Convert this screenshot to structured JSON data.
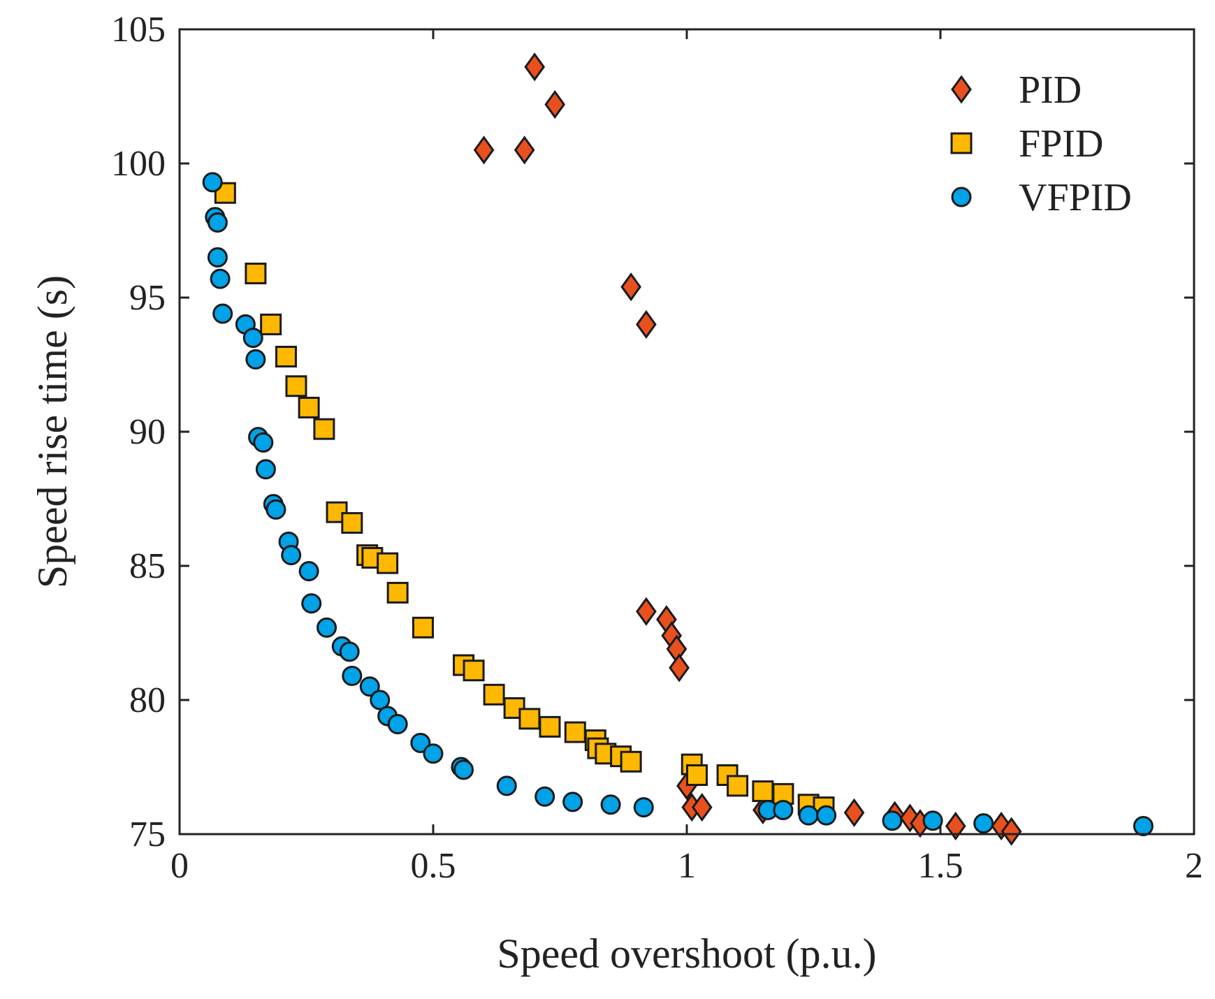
{
  "chart_data": {
    "type": "scatter",
    "title": "",
    "xlabel": "Speed overshoot (p.u.)",
    "ylabel": "Speed rise time (s)",
    "xlim": [
      0,
      2
    ],
    "ylim": [
      75,
      105
    ],
    "xticks": [
      0,
      0.5,
      1,
      1.5,
      2
    ],
    "xtick_labels": [
      "0",
      "0.5",
      "1",
      "1.5",
      "2"
    ],
    "yticks": [
      75,
      80,
      85,
      90,
      95,
      100,
      105
    ],
    "ytick_labels": [
      "75",
      "80",
      "85",
      "90",
      "95",
      "100",
      "105"
    ],
    "grid": false,
    "legend": "top-right",
    "series": [
      {
        "name": "PID",
        "marker": "diamond",
        "color": "#E8501E",
        "points": [
          [
            0.6,
            100.5
          ],
          [
            0.68,
            100.5
          ],
          [
            0.7,
            103.6
          ],
          [
            0.74,
            102.2
          ],
          [
            0.89,
            95.4
          ],
          [
            0.92,
            94.0
          ],
          [
            0.92,
            83.3
          ],
          [
            0.96,
            83.0
          ],
          [
            0.97,
            82.4
          ],
          [
            0.98,
            81.9
          ],
          [
            0.985,
            81.2
          ],
          [
            1.0,
            76.8
          ],
          [
            1.01,
            76.0
          ],
          [
            1.03,
            76.0
          ],
          [
            1.15,
            75.9
          ],
          [
            1.33,
            75.8
          ],
          [
            1.41,
            75.7
          ],
          [
            1.44,
            75.6
          ],
          [
            1.46,
            75.4
          ],
          [
            1.53,
            75.3
          ],
          [
            1.62,
            75.3
          ],
          [
            1.64,
            75.1
          ]
        ]
      },
      {
        "name": "FPID",
        "marker": "square",
        "color": "#FFB800",
        "points": [
          [
            0.09,
            98.9
          ],
          [
            0.15,
            95.9
          ],
          [
            0.18,
            94.0
          ],
          [
            0.21,
            92.8
          ],
          [
            0.23,
            91.7
          ],
          [
            0.255,
            90.9
          ],
          [
            0.285,
            90.1
          ],
          [
            0.31,
            87.0
          ],
          [
            0.34,
            86.6
          ],
          [
            0.37,
            85.4
          ],
          [
            0.38,
            85.3
          ],
          [
            0.41,
            85.1
          ],
          [
            0.43,
            84.0
          ],
          [
            0.48,
            82.7
          ],
          [
            0.56,
            81.3
          ],
          [
            0.58,
            81.1
          ],
          [
            0.62,
            80.2
          ],
          [
            0.66,
            79.7
          ],
          [
            0.69,
            79.3
          ],
          [
            0.73,
            79.0
          ],
          [
            0.78,
            78.8
          ],
          [
            0.82,
            78.5
          ],
          [
            0.825,
            78.2
          ],
          [
            0.84,
            78.0
          ],
          [
            0.87,
            77.9
          ],
          [
            0.89,
            77.7
          ],
          [
            1.01,
            77.6
          ],
          [
            1.02,
            77.2
          ],
          [
            1.08,
            77.2
          ],
          [
            1.1,
            76.8
          ],
          [
            1.15,
            76.6
          ],
          [
            1.19,
            76.5
          ],
          [
            1.24,
            76.1
          ],
          [
            1.27,
            76.0
          ]
        ]
      },
      {
        "name": "VFPID",
        "marker": "circle",
        "color": "#00A2E8",
        "points": [
          [
            0.065,
            99.3
          ],
          [
            0.07,
            98.0
          ],
          [
            0.075,
            97.8
          ],
          [
            0.075,
            96.5
          ],
          [
            0.08,
            95.7
          ],
          [
            0.085,
            94.4
          ],
          [
            0.13,
            94.0
          ],
          [
            0.145,
            93.5
          ],
          [
            0.15,
            92.7
          ],
          [
            0.155,
            89.8
          ],
          [
            0.165,
            89.6
          ],
          [
            0.17,
            88.6
          ],
          [
            0.185,
            87.3
          ],
          [
            0.19,
            87.1
          ],
          [
            0.215,
            85.9
          ],
          [
            0.22,
            85.4
          ],
          [
            0.255,
            84.8
          ],
          [
            0.26,
            83.6
          ],
          [
            0.29,
            82.7
          ],
          [
            0.32,
            82.0
          ],
          [
            0.335,
            81.8
          ],
          [
            0.34,
            80.9
          ],
          [
            0.375,
            80.5
          ],
          [
            0.395,
            80.0
          ],
          [
            0.41,
            79.4
          ],
          [
            0.43,
            79.1
          ],
          [
            0.475,
            78.4
          ],
          [
            0.5,
            78.0
          ],
          [
            0.555,
            77.5
          ],
          [
            0.56,
            77.4
          ],
          [
            0.645,
            76.8
          ],
          [
            0.72,
            76.4
          ],
          [
            0.775,
            76.2
          ],
          [
            0.85,
            76.1
          ],
          [
            0.915,
            76.0
          ],
          [
            1.16,
            75.9
          ],
          [
            1.19,
            75.9
          ],
          [
            1.24,
            75.7
          ],
          [
            1.275,
            75.7
          ],
          [
            1.405,
            75.5
          ],
          [
            1.485,
            75.5
          ],
          [
            1.585,
            75.4
          ],
          [
            1.9,
            75.3
          ]
        ]
      }
    ]
  }
}
